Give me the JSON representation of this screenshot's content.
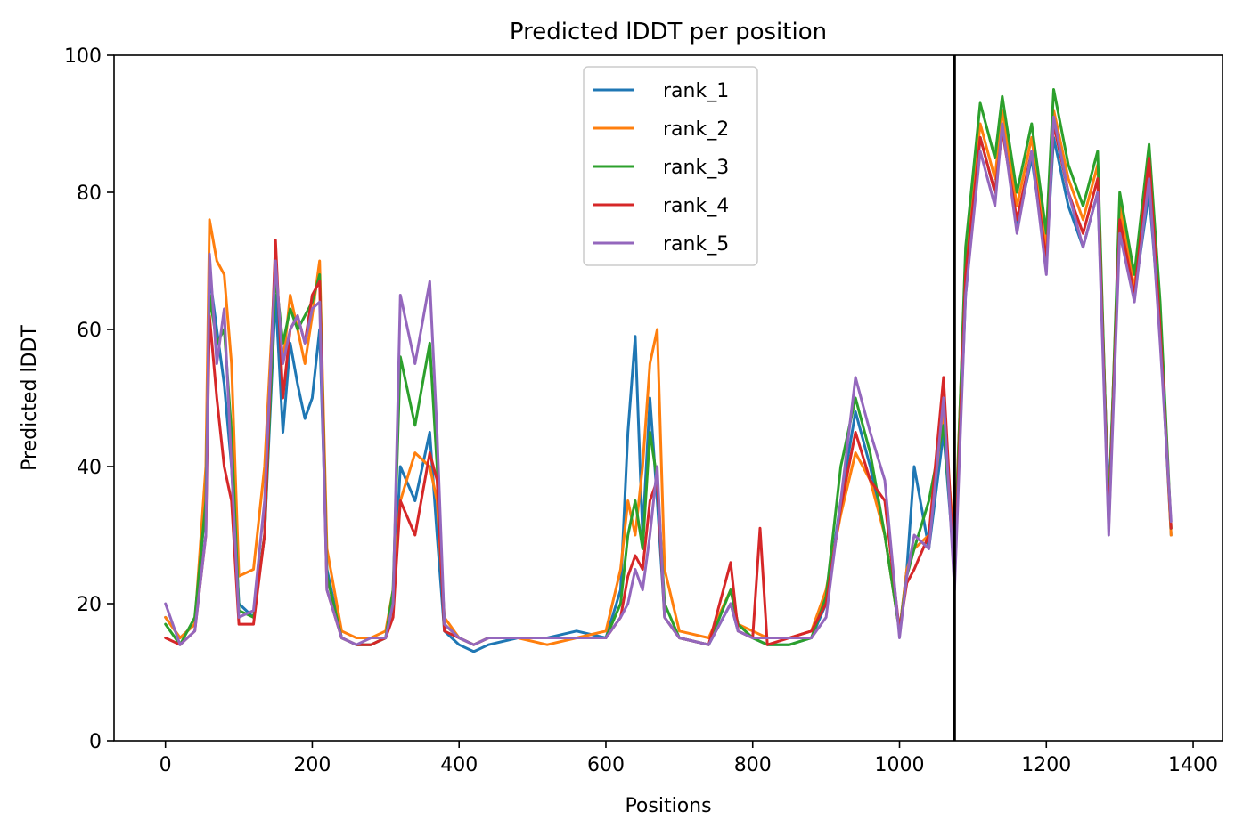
{
  "chart_data": {
    "type": "line",
    "title": "Predicted lDDT per position",
    "xlabel": "Positions",
    "ylabel": "Predicted lDDT",
    "xlim": [
      -70,
      1440
    ],
    "ylim": [
      0,
      100
    ],
    "x_ticks": [
      0,
      200,
      400,
      600,
      800,
      1000,
      1200,
      1400
    ],
    "y_ticks": [
      0,
      20,
      40,
      60,
      80,
      100
    ],
    "grid": false,
    "legend_position": "upper center",
    "vertical_line_x": 1075,
    "vertical_line_color": "#000000",
    "series": [
      {
        "name": "rank_1",
        "color": "#1f77b4",
        "x": [
          0,
          20,
          40,
          55,
          60,
          70,
          80,
          90,
          100,
          120,
          135,
          150,
          160,
          170,
          180,
          190,
          200,
          210,
          220,
          240,
          260,
          280,
          300,
          310,
          320,
          340,
          360,
          370,
          380,
          400,
          420,
          440,
          480,
          520,
          560,
          600,
          620,
          630,
          640,
          650,
          660,
          670,
          680,
          700,
          740,
          770,
          780,
          800,
          820,
          850,
          880,
          900,
          920,
          940,
          960,
          980,
          1000,
          1010,
          1020,
          1040,
          1060,
          1075,
          1090,
          1110,
          1130,
          1140,
          1160,
          1180,
          1200,
          1210,
          1230,
          1250,
          1270,
          1285,
          1300,
          1320,
          1340,
          1355,
          1370
        ],
        "values": [
          18,
          15,
          17,
          35,
          68,
          60,
          52,
          40,
          20,
          18,
          30,
          65,
          45,
          58,
          52,
          47,
          50,
          60,
          25,
          15,
          14,
          14,
          15,
          20,
          40,
          35,
          45,
          30,
          16,
          14,
          13,
          14,
          15,
          15,
          16,
          15,
          22,
          45,
          59,
          30,
          50,
          35,
          18,
          15,
          14,
          20,
          16,
          15,
          14,
          14,
          15,
          20,
          35,
          48,
          40,
          30,
          16,
          25,
          40,
          28,
          45,
          25,
          65,
          88,
          80,
          90,
          75,
          85,
          70,
          88,
          78,
          72,
          80,
          35,
          75,
          65,
          80,
          60,
          30
        ]
      },
      {
        "name": "rank_2",
        "color": "#ff7f0e",
        "x": [
          0,
          20,
          40,
          55,
          60,
          70,
          80,
          90,
          100,
          120,
          135,
          150,
          160,
          170,
          180,
          190,
          200,
          210,
          220,
          240,
          260,
          280,
          300,
          310,
          320,
          340,
          360,
          370,
          380,
          400,
          420,
          440,
          480,
          520,
          560,
          600,
          620,
          630,
          640,
          650,
          660,
          670,
          680,
          700,
          740,
          770,
          780,
          800,
          820,
          850,
          880,
          900,
          920,
          940,
          960,
          980,
          1000,
          1010,
          1020,
          1040,
          1060,
          1075,
          1090,
          1110,
          1130,
          1140,
          1160,
          1180,
          1200,
          1210,
          1230,
          1250,
          1270,
          1285,
          1300,
          1320,
          1340,
          1355,
          1370
        ],
        "values": [
          18,
          15,
          17,
          40,
          76,
          70,
          68,
          55,
          24,
          25,
          40,
          70,
          55,
          65,
          60,
          55,
          62,
          70,
          28,
          16,
          15,
          15,
          16,
          22,
          35,
          42,
          40,
          35,
          18,
          15,
          14,
          15,
          15,
          14,
          15,
          16,
          25,
          35,
          30,
          40,
          55,
          60,
          25,
          16,
          15,
          22,
          17,
          16,
          15,
          15,
          16,
          22,
          33,
          42,
          38,
          30,
          16,
          25,
          28,
          30,
          48,
          28,
          70,
          90,
          82,
          92,
          78,
          88,
          72,
          92,
          82,
          76,
          84,
          33,
          78,
          66,
          84,
          62,
          30
        ]
      },
      {
        "name": "rank_3",
        "color": "#2ca02c",
        "x": [
          0,
          20,
          40,
          55,
          60,
          70,
          80,
          90,
          100,
          120,
          135,
          150,
          160,
          170,
          180,
          190,
          200,
          210,
          220,
          240,
          260,
          280,
          300,
          310,
          320,
          340,
          360,
          370,
          380,
          400,
          420,
          440,
          480,
          520,
          560,
          600,
          620,
          630,
          640,
          650,
          660,
          670,
          680,
          700,
          740,
          770,
          780,
          800,
          820,
          850,
          880,
          900,
          920,
          940,
          960,
          980,
          1000,
          1010,
          1020,
          1040,
          1060,
          1075,
          1090,
          1110,
          1130,
          1140,
          1160,
          1180,
          1200,
          1210,
          1230,
          1250,
          1270,
          1285,
          1300,
          1320,
          1340,
          1355,
          1370
        ],
        "values": [
          17,
          14,
          18,
          35,
          65,
          58,
          60,
          45,
          19,
          18,
          30,
          68,
          58,
          63,
          60,
          62,
          64,
          68,
          24,
          15,
          14,
          14,
          15,
          22,
          56,
          46,
          58,
          40,
          17,
          15,
          14,
          15,
          15,
          15,
          15,
          15,
          20,
          30,
          35,
          28,
          45,
          38,
          20,
          15,
          14,
          22,
          17,
          15,
          14,
          14,
          15,
          21,
          40,
          50,
          42,
          30,
          16,
          24,
          28,
          35,
          46,
          26,
          72,
          93,
          85,
          94,
          80,
          90,
          74,
          95,
          84,
          78,
          86,
          32,
          80,
          68,
          87,
          64,
          31
        ]
      },
      {
        "name": "rank_4",
        "color": "#d62728",
        "x": [
          0,
          20,
          40,
          55,
          60,
          70,
          80,
          90,
          100,
          120,
          135,
          150,
          160,
          170,
          180,
          190,
          200,
          210,
          220,
          240,
          260,
          280,
          300,
          310,
          320,
          340,
          360,
          370,
          380,
          400,
          420,
          440,
          480,
          520,
          560,
          600,
          620,
          630,
          640,
          650,
          660,
          670,
          680,
          700,
          740,
          770,
          780,
          800,
          810,
          820,
          850,
          880,
          900,
          920,
          940,
          960,
          980,
          1000,
          1010,
          1020,
          1040,
          1060,
          1075,
          1090,
          1110,
          1130,
          1140,
          1160,
          1180,
          1200,
          1210,
          1230,
          1250,
          1270,
          1285,
          1300,
          1320,
          1340,
          1355,
          1370
        ],
        "values": [
          15,
          14,
          16,
          30,
          62,
          50,
          40,
          35,
          17,
          17,
          30,
          73,
          50,
          60,
          62,
          58,
          65,
          67,
          22,
          15,
          14,
          14,
          15,
          18,
          35,
          30,
          42,
          38,
          16,
          15,
          14,
          15,
          15,
          15,
          15,
          15,
          18,
          24,
          27,
          25,
          35,
          38,
          18,
          15,
          14,
          26,
          16,
          15,
          31,
          14,
          15,
          16,
          20,
          34,
          45,
          38,
          35,
          16,
          23,
          25,
          30,
          53,
          24,
          68,
          88,
          80,
          89,
          76,
          86,
          70,
          90,
          80,
          74,
          82,
          31,
          76,
          65,
          85,
          60,
          31
        ]
      },
      {
        "name": "rank_5",
        "color": "#9467bd",
        "x": [
          0,
          20,
          40,
          55,
          60,
          70,
          80,
          90,
          100,
          120,
          135,
          150,
          160,
          170,
          180,
          190,
          200,
          210,
          220,
          240,
          260,
          280,
          300,
          310,
          320,
          340,
          360,
          370,
          380,
          400,
          420,
          440,
          480,
          520,
          560,
          600,
          620,
          630,
          640,
          650,
          660,
          670,
          680,
          700,
          740,
          770,
          780,
          800,
          820,
          850,
          880,
          900,
          920,
          940,
          960,
          980,
          1000,
          1010,
          1020,
          1040,
          1060,
          1075,
          1090,
          1110,
          1130,
          1140,
          1160,
          1180,
          1200,
          1210,
          1230,
          1250,
          1270,
          1285,
          1300,
          1320,
          1340,
          1355,
          1370
        ],
        "values": [
          20,
          14,
          16,
          30,
          71,
          55,
          63,
          40,
          18,
          19,
          35,
          70,
          55,
          60,
          62,
          58,
          63,
          64,
          22,
          15,
          14,
          15,
          15,
          20,
          65,
          55,
          67,
          45,
          17,
          15,
          14,
          15,
          15,
          15,
          15,
          15,
          18,
          20,
          25,
          22,
          30,
          40,
          18,
          15,
          14,
          20,
          16,
          15,
          15,
          15,
          15,
          18,
          35,
          53,
          45,
          38,
          15,
          24,
          30,
          28,
          50,
          22,
          65,
          86,
          78,
          90,
          74,
          86,
          68,
          91,
          80,
          72,
          80,
          30,
          74,
          64,
          82,
          58,
          32
        ]
      }
    ]
  }
}
